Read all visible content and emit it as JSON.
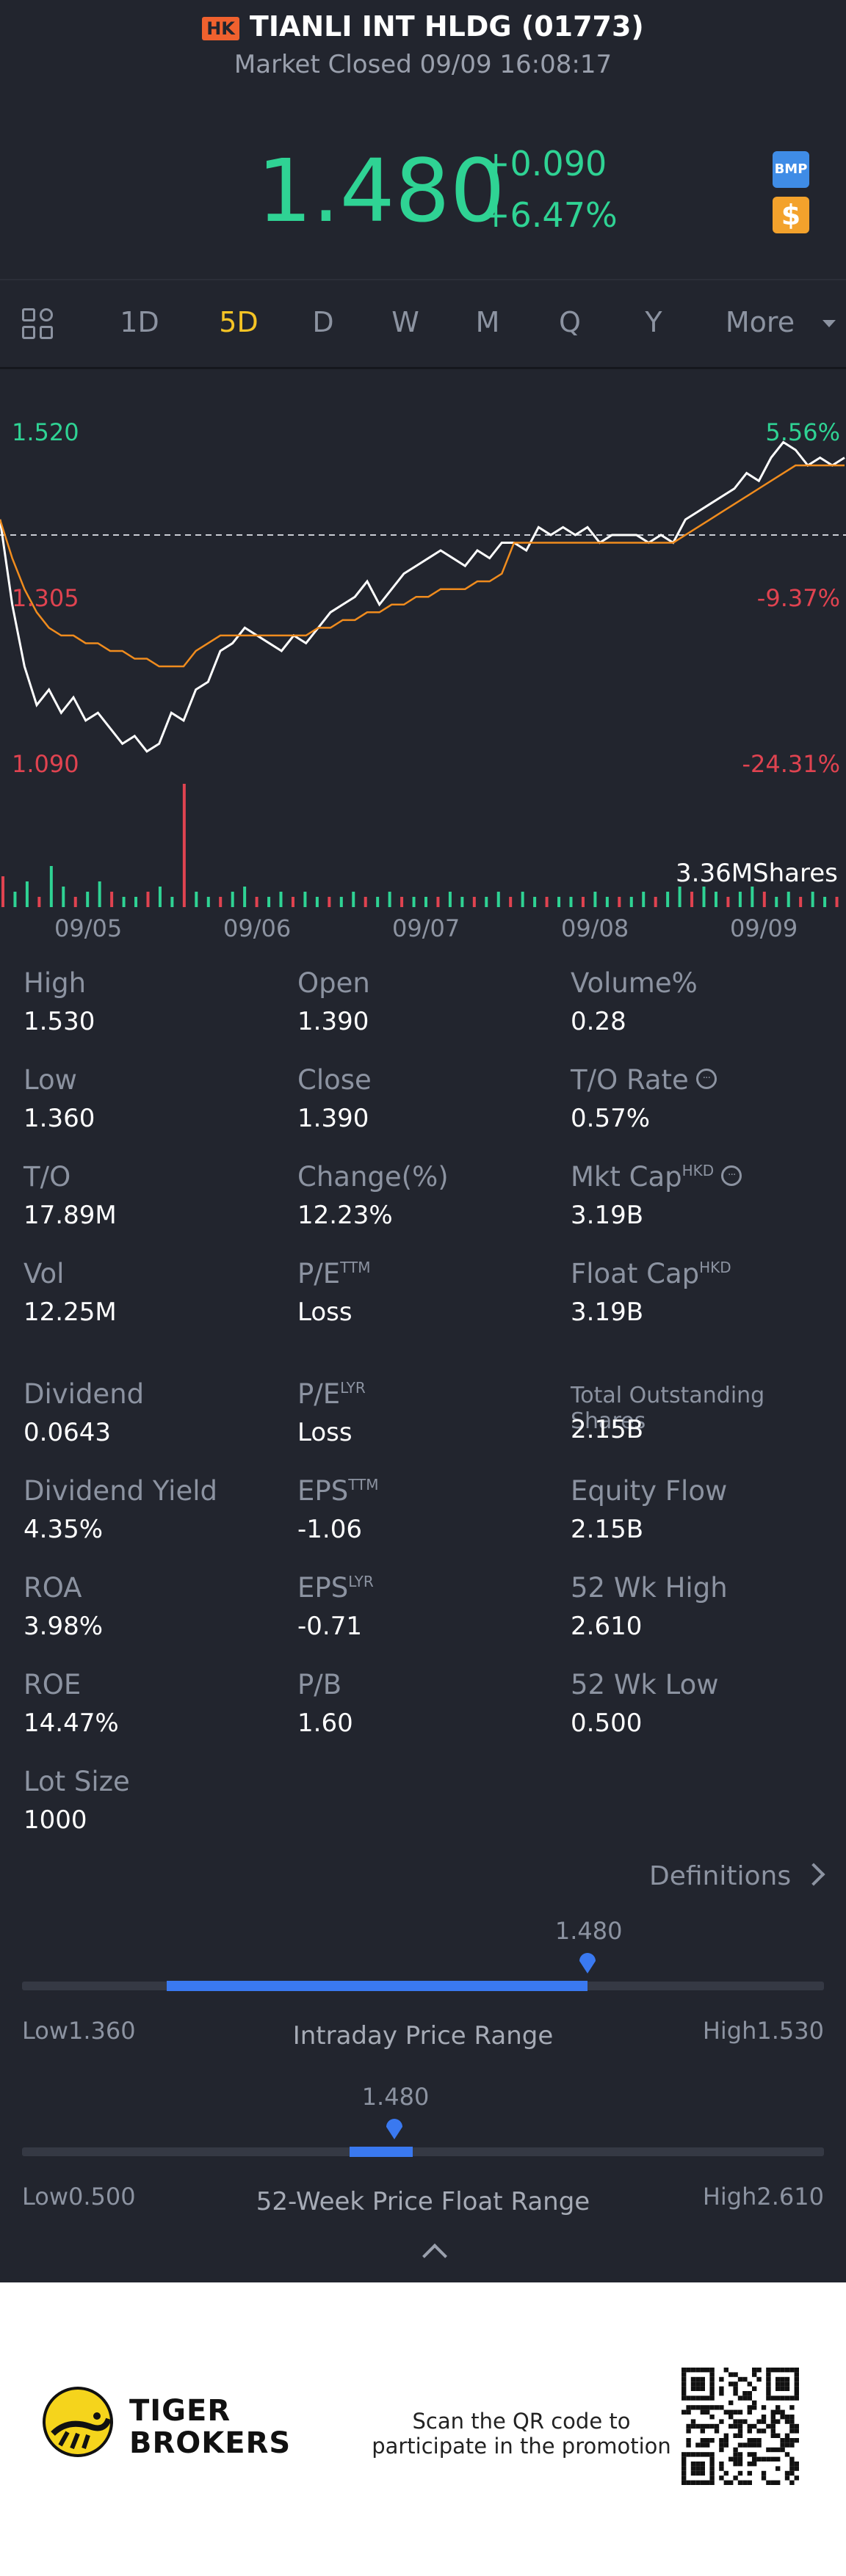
{
  "header": {
    "market_badge": "HK",
    "title": "TIANLI INT HLDG (01773)",
    "status": "Market Closed 09/09 16:08:17",
    "price": "1.480",
    "change": "+0.090",
    "change_pct": "+6.47%",
    "icon_bmp_label": "BMP",
    "icon_dollar_label": "$",
    "colors": {
      "up": "#2fd394",
      "down": "#e04350",
      "accent": "#f5c425"
    }
  },
  "tabs": {
    "items": [
      "1D",
      "5D",
      "D",
      "W",
      "M",
      "Q",
      "Y"
    ],
    "active": "5D",
    "more_label": "More"
  },
  "chart_data": {
    "type": "line",
    "ylim": [
      1.09,
      1.52
    ],
    "yticks_price": [
      "1.520",
      "1.305",
      "1.090"
    ],
    "yticks_pct": [
      "5.56%",
      "-9.37%",
      "-24.31%"
    ],
    "reference_price": 1.39,
    "x_labels": [
      "09/05",
      "09/06",
      "09/07",
      "09/08",
      "09/09"
    ],
    "volume_label": "3.36MShares",
    "series": [
      {
        "values": [
          1.41,
          1.3,
          1.22,
          1.17,
          1.19,
          1.16,
          1.18,
          1.15,
          1.16,
          1.14,
          1.12,
          1.13,
          1.11,
          1.12,
          1.16,
          1.15,
          1.19,
          1.2,
          1.24,
          1.25,
          1.27,
          1.26,
          1.25,
          1.24,
          1.26,
          1.25,
          1.27,
          1.29,
          1.3,
          1.31,
          1.33,
          1.3,
          1.32,
          1.34,
          1.35,
          1.36,
          1.37,
          1.36,
          1.35,
          1.37,
          1.36,
          1.38,
          1.38,
          1.37,
          1.4,
          1.39,
          1.4,
          1.39,
          1.4,
          1.38,
          1.39,
          1.39,
          1.39,
          1.38,
          1.39,
          1.38,
          1.41,
          1.42,
          1.43,
          1.44,
          1.45,
          1.47,
          1.46,
          1.49,
          1.51,
          1.5,
          1.48,
          1.49,
          1.48,
          1.49
        ]
      },
      {
        "values": [
          1.41,
          1.36,
          1.32,
          1.29,
          1.27,
          1.26,
          1.26,
          1.25,
          1.25,
          1.24,
          1.24,
          1.23,
          1.23,
          1.22,
          1.22,
          1.22,
          1.24,
          1.25,
          1.26,
          1.26,
          1.26,
          1.26,
          1.26,
          1.26,
          1.26,
          1.26,
          1.27,
          1.27,
          1.28,
          1.28,
          1.29,
          1.29,
          1.3,
          1.3,
          1.31,
          1.31,
          1.32,
          1.32,
          1.32,
          1.33,
          1.33,
          1.34,
          1.38,
          1.38,
          1.38,
          1.38,
          1.38,
          1.38,
          1.38,
          1.38,
          1.38,
          1.38,
          1.38,
          1.38,
          1.38,
          1.38,
          1.39,
          1.4,
          1.41,
          1.42,
          1.43,
          1.44,
          1.45,
          1.46,
          1.47,
          1.48,
          1.48,
          1.48,
          1.48,
          1.48
        ]
      }
    ],
    "volume": [
      6,
      3,
      5,
      2,
      8,
      4,
      2,
      3,
      5,
      3,
      2,
      2,
      3,
      4,
      2,
      24,
      3,
      2,
      2,
      3,
      4,
      2,
      2,
      3,
      2,
      3,
      2,
      2,
      2,
      3,
      2,
      2,
      3,
      2,
      2,
      2,
      2,
      3,
      2,
      2,
      2,
      3,
      2,
      3,
      2,
      2,
      2,
      2,
      2,
      3,
      2,
      2,
      2,
      3,
      2,
      3,
      4,
      3,
      4,
      3,
      2,
      3,
      4,
      3,
      2,
      3,
      2,
      3,
      2,
      2
    ]
  },
  "stats": {
    "col1": [
      {
        "label": "High",
        "value": "1.530"
      },
      {
        "label": "Low",
        "value": "1.360"
      },
      {
        "label": "T/O",
        "value": "17.89M"
      },
      {
        "label": "Vol",
        "value": "12.25M"
      },
      {
        "label": "Dividend",
        "value": "0.0643"
      },
      {
        "label": "Dividend Yield",
        "value": "4.35%"
      },
      {
        "label": "ROA",
        "value": "3.98%"
      },
      {
        "label": "ROE",
        "value": "14.47%"
      },
      {
        "label": "Lot Size",
        "value": "1000"
      }
    ],
    "col2": [
      {
        "label": "Open",
        "value": "1.390"
      },
      {
        "label": "Close",
        "value": "1.390"
      },
      {
        "label": "Change(%)",
        "value": "12.23%"
      },
      {
        "label": "P/E",
        "sup": "TTM",
        "value": "Loss"
      },
      {
        "label": "P/E",
        "sup": "LYR",
        "value": "Loss"
      },
      {
        "label": "EPS",
        "sup": "TTM",
        "value": "-1.06"
      },
      {
        "label": "EPS",
        "sup": "LYR",
        "value": "-0.71"
      },
      {
        "label": "P/B",
        "value": "1.60"
      }
    ],
    "col3": [
      {
        "label": "Volume%",
        "value": "0.28"
      },
      {
        "label": "T/O Rate",
        "value": "0.57%"
      },
      {
        "label": "Mkt Cap",
        "sup": "HKD",
        "value": "3.19B"
      },
      {
        "label": "Float Cap",
        "sup": "HKD",
        "value": "3.19B"
      },
      {
        "label": "Total Outstanding Shares",
        "value": "2.15B"
      },
      {
        "label": "Equity Flow",
        "value": "2.15B"
      },
      {
        "label": "52 Wk High",
        "value": "2.610"
      },
      {
        "label": "52 Wk Low",
        "value": "0.500"
      }
    ],
    "info_glyph": "···",
    "definitions_label": "Definitions"
  },
  "intraday_range": {
    "current": "1.480",
    "low_label": "Low1.360",
    "high_label": "High1.530",
    "title": "Intraday Price Range",
    "fill_start": 0.18,
    "fill_end": 0.705,
    "marker": 0.705
  },
  "week52_range": {
    "current": "1.480",
    "low_label": "Low0.500",
    "high_label": "High2.610",
    "title": "52-Week Price Float Range",
    "fill_start": 0.408,
    "fill_end": 0.487,
    "marker": 0.464
  },
  "footer": {
    "brand_line1": "TIGER",
    "brand_line2": "BROKERS",
    "scan_line1": "Scan the QR code to",
    "scan_line2": "participate in the promotion"
  }
}
